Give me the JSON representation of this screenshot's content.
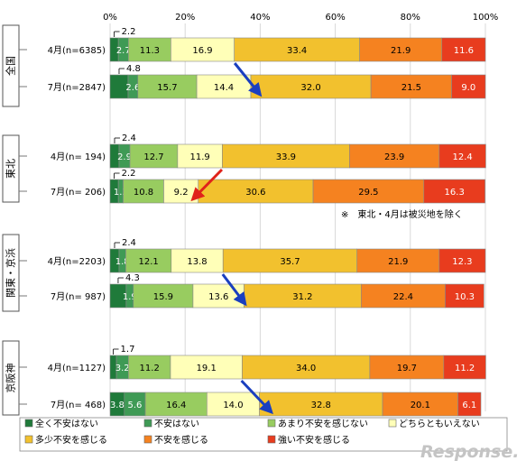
{
  "chart_data": {
    "type": "bar",
    "stacked": true,
    "orientation": "horizontal",
    "xlim": [
      0,
      100
    ],
    "x_ticks": [
      "0%",
      "20%",
      "40%",
      "60%",
      "80%",
      "100%"
    ],
    "colors": [
      "#1f7a3a",
      "#3f9a55",
      "#98cc60",
      "#ffffb8",
      "#f2c12e",
      "#f58220",
      "#e83c1e"
    ],
    "series": [
      {
        "name": "全く不安はない"
      },
      {
        "name": "不安はない"
      },
      {
        "name": "あまり不安を感じない"
      },
      {
        "name": "どちらともいえない"
      },
      {
        "name": "多少不安を感じる"
      },
      {
        "name": "不安を感じる"
      },
      {
        "name": "強い不安を感じる"
      }
    ],
    "groups": [
      {
        "name": "全国",
        "rows": [
          {
            "label": "4月(n=6385)",
            "values": [
              2.2,
              2.7,
              11.3,
              16.9,
              33.4,
              21.9,
              11.6
            ],
            "labels": [
              "",
              "2.7",
              "11.3",
              "16.9",
              "33.4",
              "21.9",
              "11.6"
            ],
            "callout": "2.2"
          },
          {
            "label": "7月(n=2847)",
            "values": [
              4.8,
              2.6,
              15.7,
              14.4,
              32.0,
              21.5,
              9.0
            ],
            "labels": [
              "",
              "2.6",
              "15.7",
              "14.4",
              "32.0",
              "21.5",
              "9.0"
            ],
            "callout": "4.8"
          }
        ]
      },
      {
        "name": "東北",
        "rows": [
          {
            "label": "4月(n= 194)",
            "values": [
              2.4,
              2.9,
              12.7,
              11.9,
              33.9,
              23.9,
              12.4
            ],
            "labels": [
              "",
              "2.9",
              "12.7",
              "11.9",
              "33.9",
              "23.9",
              "12.4"
            ],
            "callout": "2.4"
          },
          {
            "label": "7月(n= 206)",
            "values": [
              2.2,
              1.3,
              10.8,
              9.2,
              30.6,
              29.5,
              16.3
            ],
            "labels": [
              "",
              "1.3",
              "10.8",
              "9.2",
              "30.6",
              "29.5",
              "16.3"
            ],
            "callout": "2.2"
          }
        ]
      },
      {
        "name": "関東・京浜",
        "rows": [
          {
            "label": "4月(n=2203)",
            "values": [
              2.4,
              1.8,
              12.1,
              13.8,
              35.7,
              21.9,
              12.3
            ],
            "labels": [
              "",
              "1.8",
              "12.1",
              "13.8",
              "35.7",
              "21.9",
              "12.3"
            ],
            "callout": "2.4"
          },
          {
            "label": "7月(n= 987)",
            "values": [
              4.3,
              1.9,
              15.9,
              13.6,
              31.2,
              22.4,
              10.3
            ],
            "labels": [
              "",
              "1.9",
              "15.9",
              "13.6",
              "31.2",
              "22.4",
              "10.3"
            ],
            "callout": "4.3"
          }
        ]
      },
      {
        "name": "京阪神",
        "rows": [
          {
            "label": "4月(n=1127)",
            "values": [
              1.7,
              3.2,
              11.2,
              19.1,
              34.0,
              19.7,
              11.2
            ],
            "labels": [
              "",
              "3.2",
              "11.2",
              "19.1",
              "34.0",
              "19.7",
              "11.2"
            ],
            "callout": "1.7"
          },
          {
            "label": "7月(n= 468)",
            "values": [
              3.8,
              5.6,
              16.4,
              14.0,
              32.8,
              20.1,
              6.1
            ],
            "labels": [
              "3.8",
              "5.6",
              "16.4",
              "14.0",
              "32.8",
              "20.1",
              "6.1"
            ],
            "callout": ""
          }
        ]
      }
    ],
    "annotations": [
      {
        "text": "※　東北・4月は被災地を除く"
      }
    ],
    "arrows": [
      {
        "group": 0,
        "from_x": 33.2,
        "to_x": 40.0,
        "color": "#1a3fbf"
      },
      {
        "group": 1,
        "from_x": 29.8,
        "to_x": 22.0,
        "color": "#e0221a"
      },
      {
        "group": 2,
        "from_x": 30.0,
        "to_x": 36.0,
        "color": "#1a3fbf"
      },
      {
        "group": 3,
        "from_x": 35.0,
        "to_x": 43.0,
        "color": "#1a3fbf"
      }
    ],
    "legend_position": "bottom",
    "watermark": "Response."
  }
}
